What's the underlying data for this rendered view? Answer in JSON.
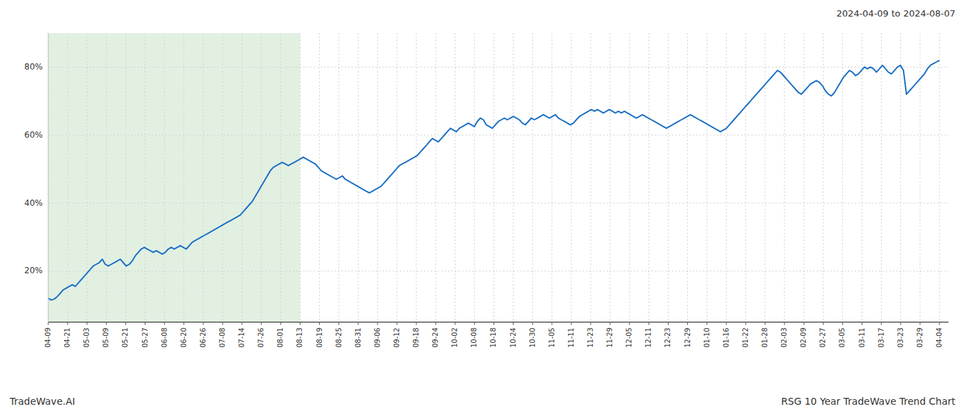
{
  "chart_data": {
    "type": "line",
    "title": "2024-04-09 to 2024-08-07",
    "annotations": [
      "TradeWave.AI",
      "RSG 10 Year TradeWave Trend Chart"
    ],
    "color": "#1a6fc4",
    "grid": true,
    "xlim": [
      0,
      300
    ],
    "xticks": [
      {
        "value": 0,
        "label": "04-09"
      },
      {
        "value": 6.4565,
        "label": "04-21"
      },
      {
        "value": 12.913,
        "label": "05-03"
      },
      {
        "value": 19.3696,
        "label": "05-09"
      },
      {
        "value": 25.8261,
        "label": "05-21"
      },
      {
        "value": 32.2826,
        "label": "05-27"
      },
      {
        "value": 38.7391,
        "label": "06-08"
      },
      {
        "value": 45.1957,
        "label": "06-20"
      },
      {
        "value": 51.6522,
        "label": "06-26"
      },
      {
        "value": 58.1087,
        "label": "07-08"
      },
      {
        "value": 64.5652,
        "label": "07-14"
      },
      {
        "value": 71.0217,
        "label": "07-26"
      },
      {
        "value": 77.4783,
        "label": "08-01"
      },
      {
        "value": 83.9348,
        "label": "08-13"
      },
      {
        "value": 90.3913,
        "label": "08-19"
      },
      {
        "value": 96.8478,
        "label": "08-25"
      },
      {
        "value": 103.3043,
        "label": "08-31"
      },
      {
        "value": 109.7609,
        "label": "09-06"
      },
      {
        "value": 116.2174,
        "label": "09-12"
      },
      {
        "value": 122.6739,
        "label": "09-18"
      },
      {
        "value": 129.1304,
        "label": "09-24"
      },
      {
        "value": 135.587,
        "label": "10-02"
      },
      {
        "value": 142.0435,
        "label": "10-08"
      },
      {
        "value": 148.5,
        "label": "10-18"
      },
      {
        "value": 154.9565,
        "label": "10-24"
      },
      {
        "value": 161.413,
        "label": "10-30"
      },
      {
        "value": 167.8696,
        "label": "11-05"
      },
      {
        "value": 174.3261,
        "label": "11-11"
      },
      {
        "value": 180.7826,
        "label": "11-23"
      },
      {
        "value": 187.2391,
        "label": "11-29"
      },
      {
        "value": 193.6957,
        "label": "12-05"
      },
      {
        "value": 200.1522,
        "label": "12-11"
      },
      {
        "value": 206.6087,
        "label": "12-23"
      },
      {
        "value": 213.0652,
        "label": "12-29"
      },
      {
        "value": 219.5217,
        "label": "01-10"
      },
      {
        "value": 225.9783,
        "label": "01-16"
      },
      {
        "value": 232.4348,
        "label": "01-22"
      },
      {
        "value": 238.8913,
        "label": "01-28"
      },
      {
        "value": 245.3478,
        "label": "02-03"
      },
      {
        "value": 251.8043,
        "label": "02-09"
      },
      {
        "value": 258.2609,
        "label": "02-27"
      },
      {
        "value": 264.7174,
        "label": "03-05"
      },
      {
        "value": 271.1739,
        "label": "03-11"
      },
      {
        "value": 277.6304,
        "label": "03-17"
      },
      {
        "value": 284.087,
        "label": "03-23"
      },
      {
        "value": 290.5435,
        "label": "03-29"
      },
      {
        "value": 297,
        "label": "04-04"
      }
    ],
    "ylim": [
      5,
      90
    ],
    "yticks": [
      {
        "value": 20,
        "label": "20%"
      },
      {
        "value": 40,
        "label": "40%"
      },
      {
        "value": 60,
        "label": "60%"
      },
      {
        "value": 80,
        "label": "80%"
      }
    ],
    "shade": {
      "x": [
        0,
        83.9348
      ],
      "color": "#d6ead6"
    },
    "values": [
      12.0,
      11.5,
      11.8,
      12.5,
      13.5,
      14.5,
      15.0,
      15.5,
      16.0,
      15.5,
      16.5,
      17.5,
      18.5,
      19.5,
      20.5,
      21.5,
      22.0,
      22.5,
      23.5,
      22.0,
      21.5,
      22.0,
      22.5,
      23.0,
      23.5,
      22.5,
      21.5,
      22.0,
      23.0,
      24.5,
      25.5,
      26.5,
      27.0,
      26.5,
      26.0,
      25.5,
      26.0,
      25.5,
      25.0,
      25.5,
      26.5,
      27.0,
      26.5,
      27.0,
      27.5,
      27.0,
      26.5,
      27.5,
      28.5,
      29.0,
      29.5,
      30.0,
      30.5,
      31.0,
      31.5,
      32.0,
      32.5,
      33.0,
      33.5,
      34.0,
      34.5,
      35.0,
      35.5,
      36.0,
      36.5,
      37.5,
      38.5,
      39.5,
      40.5,
      42.0,
      43.5,
      45.0,
      46.5,
      48.0,
      49.5,
      50.5,
      51.0,
      51.5,
      52.0,
      51.5,
      51.0,
      51.5,
      52.0,
      52.5,
      53.0,
      53.5,
      53.0,
      52.5,
      52.0,
      51.5,
      50.5,
      49.5,
      49.0,
      48.5,
      48.0,
      47.5,
      47.0,
      47.5,
      48.0,
      47.0,
      46.5,
      46.0,
      45.5,
      45.0,
      44.5,
      44.0,
      43.5,
      43.0,
      43.5,
      44.0,
      44.5,
      45.0,
      46.0,
      47.0,
      48.0,
      49.0,
      50.0,
      51.0,
      51.5,
      52.0,
      52.5,
      53.0,
      53.5,
      54.0,
      55.0,
      56.0,
      57.0,
      58.0,
      59.0,
      58.5,
      58.0,
      59.0,
      60.0,
      61.0,
      62.0,
      61.5,
      61.0,
      62.0,
      62.5,
      63.0,
      63.5,
      63.0,
      62.5,
      64.0,
      65.0,
      64.5,
      63.0,
      62.5,
      62.0,
      63.0,
      64.0,
      64.5,
      65.0,
      64.5,
      65.0,
      65.5,
      65.0,
      64.5,
      63.5,
      63.0,
      64.0,
      65.0,
      64.5,
      65.0,
      65.5,
      66.0,
      65.5,
      65.0,
      65.5,
      66.0,
      65.0,
      64.5,
      64.0,
      63.5,
      63.0,
      63.5,
      64.5,
      65.5,
      66.0,
      66.5,
      67.0,
      67.5,
      67.0,
      67.5,
      67.0,
      66.5,
      67.0,
      67.5,
      67.0,
      66.5,
      67.0,
      66.5,
      67.0,
      66.5,
      66.0,
      65.5,
      65.0,
      65.5,
      66.0,
      65.5,
      65.0,
      64.5,
      64.0,
      63.5,
      63.0,
      62.5,
      62.0,
      62.5,
      63.0,
      63.5,
      64.0,
      64.5,
      65.0,
      65.5,
      66.0,
      65.5,
      65.0,
      64.5,
      64.0,
      63.5,
      63.0,
      62.5,
      62.0,
      61.5,
      61.0,
      61.5,
      62.0,
      63.0,
      64.0,
      65.0,
      66.0,
      67.0,
      68.0,
      69.0,
      70.0,
      71.0,
      72.0,
      73.0,
      74.0,
      75.0,
      76.0,
      77.0,
      78.0,
      79.0,
      78.5,
      77.5,
      76.5,
      75.5,
      74.5,
      73.5,
      72.5,
      72.0,
      73.0,
      74.0,
      75.0,
      75.5,
      76.0,
      75.5,
      74.5,
      73.0,
      72.0,
      71.5,
      72.5,
      74.0,
      75.5,
      77.0,
      78.0,
      79.0,
      78.5,
      77.5,
      78.0,
      79.0,
      80.0,
      79.5,
      80.0,
      79.5,
      78.5,
      79.5,
      80.5,
      79.5,
      78.5,
      78.0,
      79.0,
      80.0,
      80.5,
      79.0,
      72.0,
      73.0,
      74.0,
      75.0,
      76.0,
      77.0,
      78.0,
      79.5,
      80.5,
      81.0,
      81.5,
      82.0
    ]
  }
}
